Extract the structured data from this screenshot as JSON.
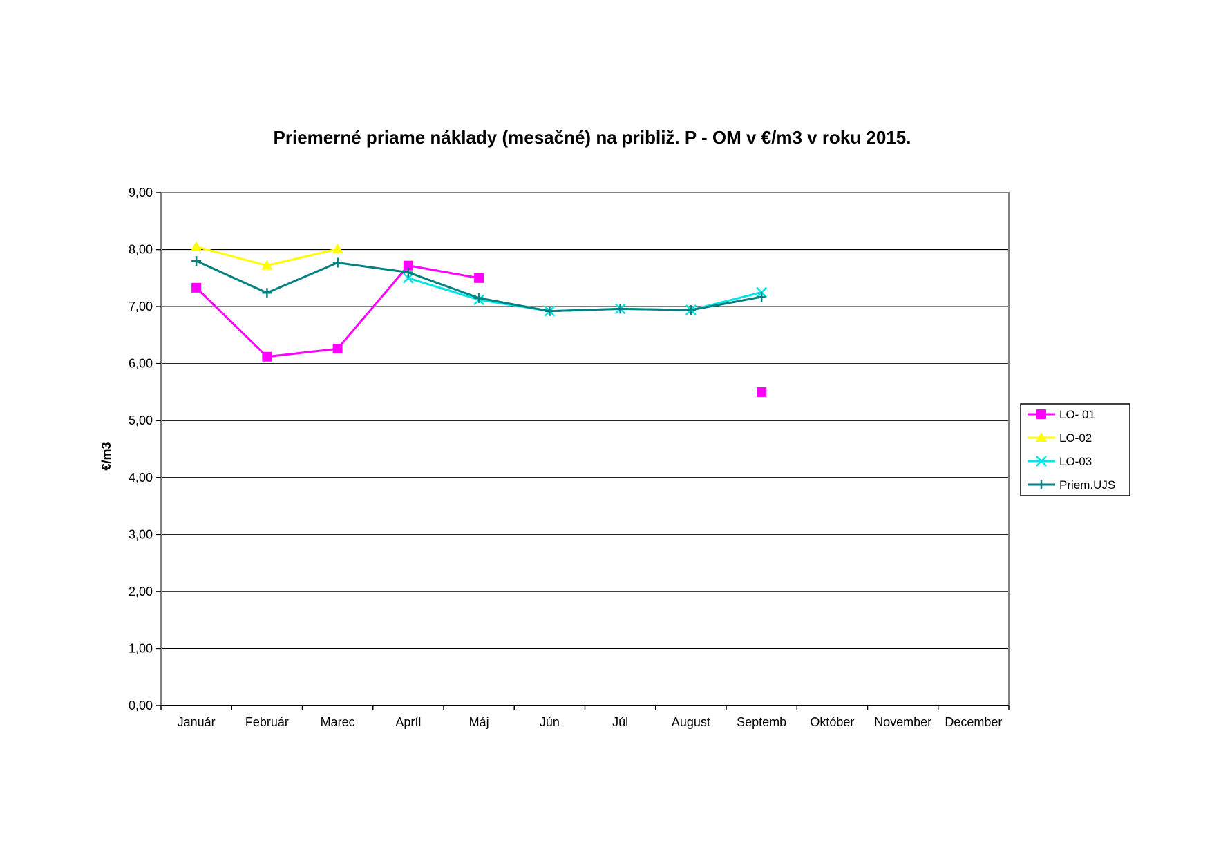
{
  "chart_data": {
    "type": "line",
    "title": "Priemerné priame náklady (mesačné) na približ. P - OM v €/m3 v roku 2015.",
    "xlabel": "",
    "ylabel": "€/m3",
    "ylim": [
      0,
      9
    ],
    "yticks": [
      "0,00",
      "1,00",
      "2,00",
      "3,00",
      "4,00",
      "5,00",
      "6,00",
      "7,00",
      "8,00",
      "9,00"
    ],
    "grid": true,
    "legend_position": "right",
    "categories": [
      "Január",
      "Február",
      "Marec",
      "Apríl",
      "Máj",
      "Jún",
      "Júl",
      "August",
      "Septemb",
      "Október",
      "November",
      "December"
    ],
    "series": [
      {
        "name": "LO- 01",
        "color": "#FF00FF",
        "marker": "square",
        "values": [
          7.33,
          6.12,
          6.26,
          7.72,
          7.5,
          null,
          null,
          null,
          5.5,
          null,
          null,
          null
        ]
      },
      {
        "name": "LO-02",
        "color": "#FFFF00",
        "marker": "triangle",
        "values": [
          8.05,
          7.72,
          8.01,
          null,
          null,
          null,
          null,
          null,
          null,
          null,
          null,
          null
        ]
      },
      {
        "name": "LO-03",
        "color": "#00E5E5",
        "marker": "x",
        "values": [
          null,
          null,
          null,
          7.5,
          7.12,
          6.92,
          6.96,
          6.94,
          7.25,
          null,
          null,
          null
        ]
      },
      {
        "name": "Priem.UJS",
        "color": "#008080",
        "marker": "plus",
        "values": [
          7.8,
          7.24,
          7.77,
          7.6,
          7.15,
          6.92,
          6.96,
          6.94,
          7.17,
          null,
          null,
          null
        ]
      }
    ]
  }
}
